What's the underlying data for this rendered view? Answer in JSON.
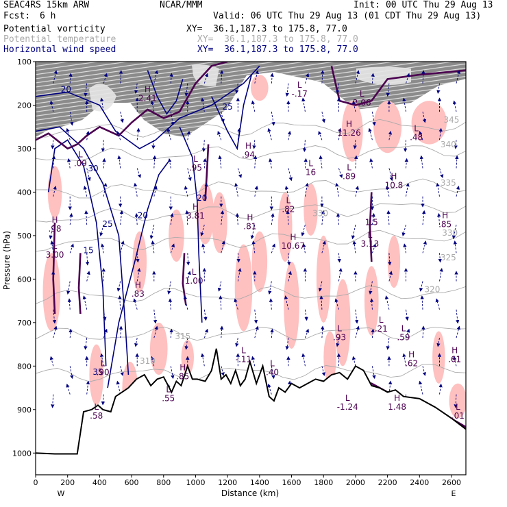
{
  "header": {
    "model": "SEAC4RS 15km ARW",
    "org": "NCAR/MMM",
    "init": "Init: 00 UTC Thu 29 Aug 13",
    "fcst_label": "Fcst:",
    "fcst_value": "6 h",
    "valid": "Valid: 06 UTC Thu 29 Aug 13 (01 CDT Thu 29 Aug 13)"
  },
  "fields": [
    {
      "name": "Potential vorticity",
      "xy": "XY=  36.1,187.3 to 175.8, 77.0",
      "color": "#000000"
    },
    {
      "name": "Potential temperature",
      "xy": "XY=  36.1,187.3 to 175.8, 77.0",
      "color": "#aaaaaa"
    },
    {
      "name": "Horizontal wind speed",
      "xy": "XY=  36.1,187.3 to 175.8, 77.0",
      "color": "#000080"
    }
  ],
  "colors": {
    "pv_fill": "#ffc0c0",
    "wind_contour": "#000080",
    "theta_contour": "#aaaaaa",
    "pv_contour": "#4b0050",
    "terrain": "#000000",
    "stratosphere_shade": "#808080"
  },
  "chart_data": {
    "type": "cross-section",
    "xlabel": "Distance (km)",
    "ylabel": "Pressure (hPa)",
    "xlim": [
      0,
      2690
    ],
    "ylim": [
      1050,
      100
    ],
    "y_scale": "linear-reversed",
    "xticks": [
      0,
      200,
      400,
      600,
      800,
      1000,
      1200,
      1400,
      1600,
      1800,
      2000,
      2200,
      2400,
      2600
    ],
    "xtick_labels": [
      "0",
      "200",
      "400",
      "600",
      "800",
      "1000",
      "1200",
      "1400",
      "1600",
      "1800",
      "2000",
      "2200",
      "2400",
      "2600"
    ],
    "yticks": [
      100,
      200,
      300,
      400,
      500,
      600,
      700,
      800,
      900,
      1000
    ],
    "ytick_labels": [
      "100",
      "200",
      "300",
      "400",
      "500",
      "600",
      "700",
      "800",
      "900",
      "1000"
    ],
    "end_labels": {
      "left": "W",
      "right": "E"
    },
    "terrain": {
      "x": [
        0,
        120,
        260,
        300,
        350,
        390,
        420,
        470,
        500,
        540,
        580,
        630,
        680,
        720,
        760,
        800,
        850,
        880,
        910,
        950,
        980,
        1010,
        1060,
        1100,
        1130,
        1160,
        1190,
        1220,
        1250,
        1280,
        1310,
        1340,
        1380,
        1420,
        1460,
        1490,
        1520,
        1560,
        1600,
        1650,
        1700,
        1750,
        1800,
        1850,
        1900,
        1950,
        2000,
        2050,
        2100,
        2150,
        2200,
        2250,
        2300,
        2400,
        2500,
        2600,
        2690
      ],
      "pressure": [
        1000,
        1002,
        1002,
        905,
        900,
        890,
        900,
        905,
        870,
        860,
        850,
        830,
        820,
        845,
        830,
        825,
        860,
        835,
        845,
        800,
        830,
        830,
        835,
        810,
        760,
        830,
        820,
        840,
        810,
        845,
        830,
        790,
        840,
        800,
        870,
        880,
        850,
        860,
        840,
        850,
        840,
        830,
        835,
        820,
        815,
        830,
        800,
        810,
        845,
        850,
        860,
        855,
        870,
        875,
        895,
        920,
        945
      ]
    },
    "theta_levels": [
      {
        "value": 330,
        "pressure_left": 460,
        "pressure_right": 430
      },
      {
        "value": 325,
        "pressure_left": 520,
        "pressure_right": 500
      },
      {
        "value": 320,
        "pressure_left": 640,
        "pressure_right": 630
      },
      {
        "value": 315,
        "pressure_left": 730,
        "pressure_right": 720
      },
      {
        "value": 310,
        "pressure_left": 820,
        "pressure_right": 810
      },
      {
        "value": 335,
        "pressure_left": 400,
        "pressure_right": 385
      },
      {
        "value": 340,
        "pressure_left": 320,
        "pressure_right": 300
      },
      {
        "value": 345,
        "pressure_left": 260,
        "pressure_right": 245
      }
    ],
    "theta_labels": [
      {
        "text": "330",
        "x": 1780,
        "p": 455
      },
      {
        "text": "335",
        "x": 2580,
        "p": 385
      },
      {
        "text": "340",
        "x": 2580,
        "p": 297
      },
      {
        "text": "345",
        "x": 2600,
        "p": 240
      },
      {
        "text": "330",
        "x": 2590,
        "p": 500
      },
      {
        "text": "325",
        "x": 2580,
        "p": 557
      },
      {
        "text": "320",
        "x": 2480,
        "p": 630
      },
      {
        "text": "315",
        "x": 920,
        "p": 738
      },
      {
        "text": "310",
        "x": 700,
        "p": 795
      }
    ],
    "wind_labels": [
      {
        "text": "20",
        "x": 190,
        "p": 170
      },
      {
        "text": "25",
        "x": 1200,
        "p": 210
      },
      {
        "text": "30",
        "x": 360,
        "p": 352
      },
      {
        "text": "25",
        "x": 450,
        "p": 480
      },
      {
        "text": "20",
        "x": 670,
        "p": 460
      },
      {
        "text": "20",
        "x": 1040,
        "p": 420
      },
      {
        "text": "15",
        "x": 330,
        "p": 540
      },
      {
        "text": "35",
        "x": 390,
        "p": 820
      }
    ],
    "extrema": [
      {
        "type": "H",
        "value": ".94",
        "x": 1330,
        "p": 300
      },
      {
        "type": "L",
        "value": "16",
        "x": 1720,
        "p": 340
      },
      {
        "type": "L",
        "value": ".89",
        "x": 1960,
        "p": 350
      },
      {
        "type": "H",
        "value": "10.8",
        "x": 2240,
        "p": 370
      },
      {
        "type": "H",
        "value": "11.26",
        "x": 1960,
        "p": 250
      },
      {
        "type": "L",
        "value": ".48",
        "x": 2380,
        "p": 260
      },
      {
        "type": "L",
        "value": ".82",
        "x": 1580,
        "p": 425
      },
      {
        "type": "H",
        "value": ".81",
        "x": 1340,
        "p": 465
      },
      {
        "type": "H",
        "value": "10.67",
        "x": 1610,
        "p": 510
      },
      {
        "type": "L",
        "value": "3.13",
        "x": 2090,
        "p": 505
      },
      {
        "type": "H",
        "value": ".85",
        "x": 2560,
        "p": 460
      },
      {
        "type": "L",
        "value": "1.5",
        "x": 2100,
        "p": 455
      },
      {
        "type": "H",
        "value": "3.81",
        "x": 1000,
        "p": 440
      },
      {
        "type": "L",
        "value": ".95",
        "x": 1000,
        "p": 330
      },
      {
        "type": "H",
        "value": ".83",
        "x": 640,
        "p": 620
      },
      {
        "type": "L",
        "value": "1.00",
        "x": 990,
        "p": 590
      },
      {
        "type": "L",
        "value": "3.00",
        "x": 120,
        "p": 530
      },
      {
        "type": "H",
        "value": ".98",
        "x": 120,
        "p": 470
      },
      {
        "type": "L",
        "value": ".09",
        "x": 280,
        "p": 320
      },
      {
        "type": "L",
        "value": ".93",
        "x": 1900,
        "p": 720
      },
      {
        "type": "L",
        "value": ".21",
        "x": 2160,
        "p": 700
      },
      {
        "type": "L",
        "value": ".59",
        "x": 2300,
        "p": 720
      },
      {
        "type": "H",
        "value": ".62",
        "x": 2350,
        "p": 780
      },
      {
        "type": "H",
        "value": ".61",
        "x": 2620,
        "p": 770
      },
      {
        "type": "L",
        "value": "-.11",
        "x": 1300,
        "p": 770
      },
      {
        "type": "L",
        "value": ".40",
        "x": 1480,
        "p": 800
      },
      {
        "type": "H",
        "value": ".85",
        "x": 920,
        "p": 810
      },
      {
        "type": "L",
        "value": ".55",
        "x": 830,
        "p": 860
      },
      {
        "type": "L",
        "value": "-1.24",
        "x": 1950,
        "p": 880
      },
      {
        "type": "H",
        "value": "1.48",
        "x": 2260,
        "p": 880
      },
      {
        "type": "L",
        "value": ".58",
        "x": 380,
        "p": 900
      },
      {
        "type": "L",
        "value": ".01",
        "x": 2640,
        "p": 900
      },
      {
        "type": "L",
        "value": "2.06",
        "x": 2040,
        "p": 180
      },
      {
        "type": "L",
        "value": "-.17",
        "x": 1650,
        "p": 160
      },
      {
        "type": "H",
        "value": "2.41",
        "x": 700,
        "p": 170
      },
      {
        "type": "L",
        "value": ".90",
        "x": 420,
        "p": 800
      }
    ]
  }
}
